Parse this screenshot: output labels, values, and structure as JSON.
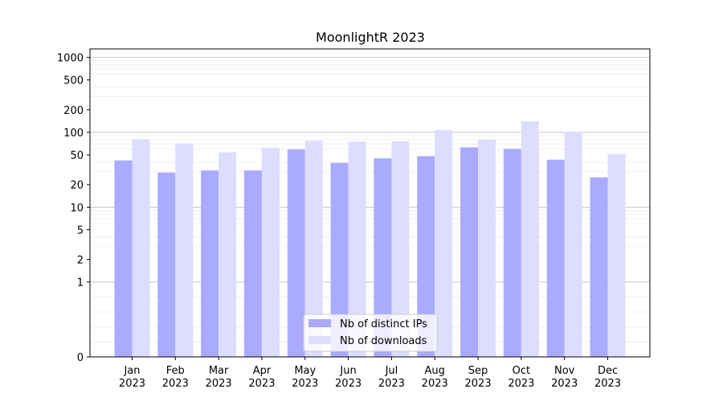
{
  "chart_data": {
    "type": "bar",
    "title": "MoonlightR 2023",
    "xlabel": "",
    "ylabel": "",
    "categories": [
      [
        "Jan",
        "2023"
      ],
      [
        "Feb",
        "2023"
      ],
      [
        "Mar",
        "2023"
      ],
      [
        "Apr",
        "2023"
      ],
      [
        "May",
        "2023"
      ],
      [
        "Jun",
        "2023"
      ],
      [
        "Jul",
        "2023"
      ],
      [
        "Aug",
        "2023"
      ],
      [
        "Sep",
        "2023"
      ],
      [
        "Oct",
        "2023"
      ],
      [
        "Nov",
        "2023"
      ],
      [
        "Dec",
        "2023"
      ]
    ],
    "y_scale": "symlog",
    "y_ticks": [
      0,
      1,
      2,
      5,
      10,
      20,
      50,
      100,
      200,
      500,
      1000
    ],
    "ylim": [
      0,
      1300
    ],
    "series": [
      {
        "name": "Nb of distinct IPs",
        "color": "#aaaaff",
        "values": [
          42,
          29,
          31,
          31,
          59,
          39,
          45,
          48,
          63,
          60,
          43,
          25
        ]
      },
      {
        "name": "Nb of downloads",
        "color": "#ddddff",
        "values": [
          81,
          71,
          54,
          62,
          77,
          75,
          76,
          107,
          79,
          140,
          102,
          51
        ]
      }
    ],
    "grid": "horizontal (major and minor)",
    "legend": "lower-center"
  }
}
